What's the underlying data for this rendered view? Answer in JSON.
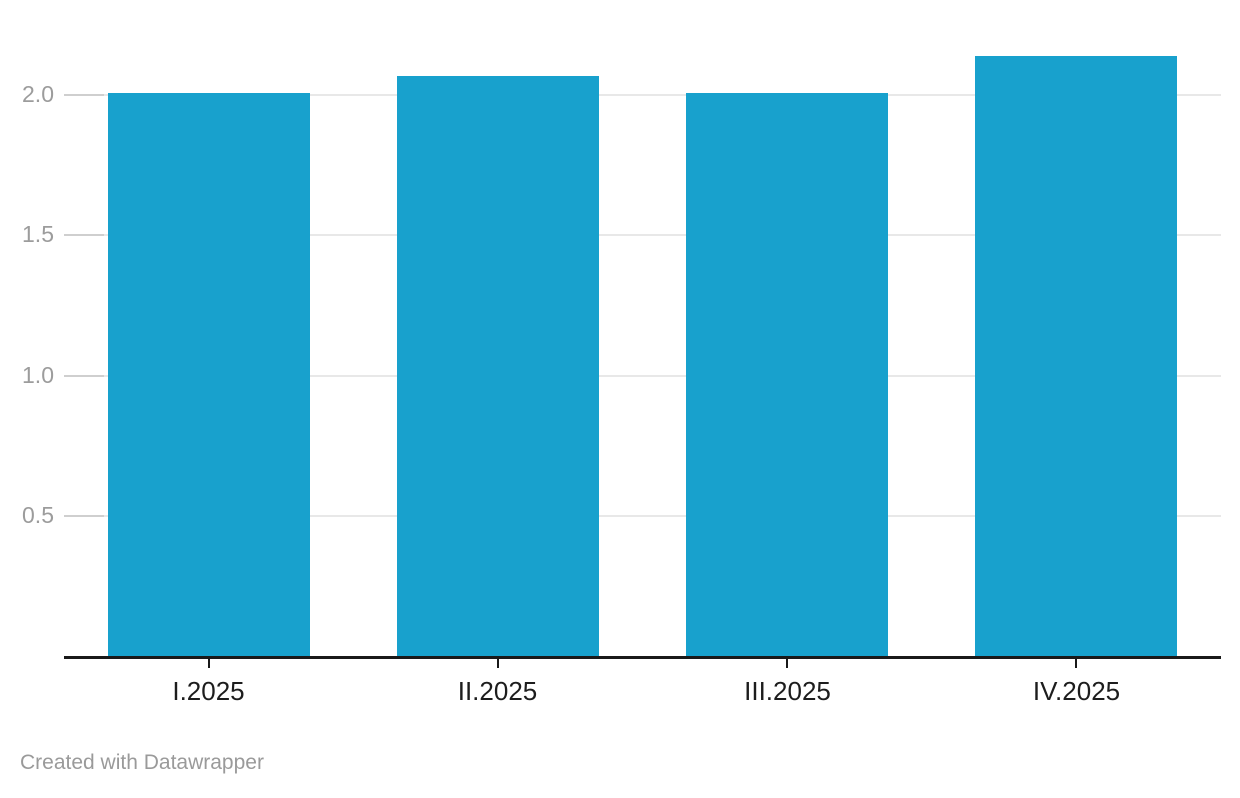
{
  "chart_data": {
    "type": "bar",
    "categories": [
      "I.2025",
      "II.2025",
      "III.2025",
      "IV.2025"
    ],
    "values": [
      2.01,
      2.07,
      2.01,
      2.14
    ],
    "title": "",
    "xlabel": "",
    "ylabel": "",
    "yticks": [
      0.5,
      1.0,
      1.5,
      2.0
    ],
    "ytick_labels": [
      "0.5",
      "1.0",
      "1.5",
      "2.0"
    ],
    "ylim": [
      0,
      2.34
    ],
    "grid": "horizontal",
    "legend": "none"
  },
  "colors": {
    "bar": "#18a1cd",
    "axis_line": "#191919",
    "x_label": "#1d1d1d",
    "y_label": "#9c9c9c",
    "gridline": "#e8e8e8",
    "grid_tick": "#cfcfcf",
    "footer": "#9a9a9a",
    "background": "#ffffff"
  },
  "footer": {
    "attribution": "Created with Datawrapper"
  }
}
